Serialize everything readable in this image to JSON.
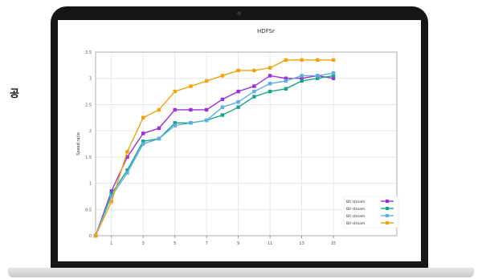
{
  "side_label": "공",
  "chart_data": {
    "type": "line",
    "title": "HDFSr",
    "xlabel": "",
    "ylabel": "Speed ratio",
    "xlim": [
      0,
      19
    ],
    "ylim": [
      0,
      3.5
    ],
    "x_ticks": [
      1,
      3,
      5,
      7,
      9,
      11,
      13,
      15
    ],
    "y_ticks": [
      0,
      0.5,
      1,
      1.5,
      2,
      2.5,
      3,
      3.5
    ],
    "y_tick_labels": [
      "0",
      "0.5",
      "1",
      "1.5",
      "2",
      "2.5",
      "3",
      "3.5"
    ],
    "grid": true,
    "legend": "bottom-right",
    "x": [
      0,
      1,
      2,
      3,
      4,
      5,
      6,
      7,
      8,
      9,
      10,
      11,
      12,
      13,
      14,
      15
    ],
    "series": [
      {
        "name": "Bit stream",
        "color": "#9b30d9",
        "values": [
          0,
          0.85,
          1.5,
          1.95,
          2.05,
          2.4,
          2.4,
          2.4,
          2.6,
          2.75,
          2.85,
          3.05,
          3.0,
          3.0,
          3.05,
          3.0
        ]
      },
      {
        "name": "Bit stream",
        "color": "#17a589",
        "values": [
          0,
          0.8,
          1.25,
          1.8,
          1.85,
          2.15,
          2.15,
          2.2,
          2.3,
          2.45,
          2.65,
          2.75,
          2.8,
          2.95,
          3.0,
          3.05
        ]
      },
      {
        "name": "Bit stream",
        "color": "#5dade2",
        "values": [
          0,
          0.75,
          1.2,
          1.75,
          1.85,
          2.1,
          2.15,
          2.2,
          2.45,
          2.55,
          2.75,
          2.9,
          2.95,
          3.05,
          3.05,
          3.1
        ]
      },
      {
        "name": "Bit stream",
        "color": "#f0a30a",
        "values": [
          0,
          0.65,
          1.6,
          2.25,
          2.4,
          2.75,
          2.85,
          2.95,
          3.05,
          3.15,
          3.15,
          3.2,
          3.35,
          3.35,
          3.35,
          3.35
        ]
      }
    ]
  }
}
